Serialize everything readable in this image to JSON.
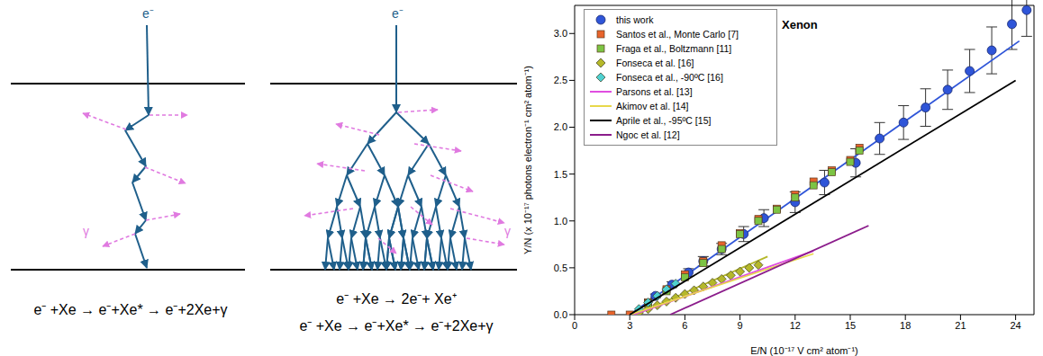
{
  "diagrams": [
    {
      "incident": "e⁻",
      "photon": "γ",
      "equations": [
        "e⁻ +Xe → e⁻+Xe* → e⁻+2Xe+γ"
      ]
    },
    {
      "incident": "e⁻",
      "photon": "γ",
      "equations": [
        "e⁻ +Xe → 2e⁻+ Xe⁺",
        "e⁻ +Xe → e⁻+Xe* → e⁻+2Xe+γ"
      ]
    }
  ],
  "chart_data": {
    "type": "scatter",
    "title": "Xenon",
    "x_label": "E/N  (10⁻¹⁷ V cm² atom⁻¹)",
    "y_label": "Y/N  (x 10⁻¹⁷ photons electron⁻¹ cm² atom⁻¹)",
    "xlim": [
      0,
      25
    ],
    "ylim": [
      0,
      3.3
    ],
    "xticks": [
      0,
      3,
      6,
      9,
      12,
      15,
      18,
      21,
      24
    ],
    "yticks": [
      {
        "value": 0,
        "label": "0.0"
      },
      {
        "value": 0.5,
        "label": "0.5"
      },
      {
        "value": 1,
        "label": "1.0"
      },
      {
        "value": 1.5,
        "label": "1.5"
      },
      {
        "value": 2,
        "label": "2.0"
      },
      {
        "value": 2.5,
        "label": "2.5"
      },
      {
        "value": 3,
        "label": "3.0"
      }
    ],
    "legend": "upper left",
    "series": [
      {
        "name": "this work",
        "type": "scatter",
        "marker": "circle",
        "color": "#2f55d8",
        "x": [
          4.4,
          5.3,
          6.2,
          7.0,
          8.0,
          9.2,
          10.3,
          12.0,
          13.6,
          15.3,
          16.6,
          17.9,
          19.1,
          20.3,
          21.5,
          22.7,
          23.8,
          24.6
        ],
        "values": [
          0.2,
          0.32,
          0.45,
          0.57,
          0.7,
          0.86,
          1.03,
          1.2,
          1.41,
          1.62,
          1.88,
          2.05,
          2.21,
          2.4,
          2.6,
          2.82,
          3.1,
          3.25
        ],
        "errors": [
          0.02,
          0.03,
          0.04,
          0.05,
          0.06,
          0.08,
          0.09,
          0.11,
          0.13,
          0.15,
          0.17,
          0.18,
          0.2,
          0.21,
          0.23,
          0.25,
          0.27,
          0.28
        ],
        "fit": {
          "x": [
            3.0,
            24.2
          ],
          "values": [
            0,
            2.92
          ]
        }
      },
      {
        "name": "Santos et al., Monte Carlo [7]",
        "type": "scatter",
        "marker": "square",
        "color": "#e8642c",
        "x": [
          2,
          3,
          4,
          5,
          6,
          7,
          8,
          9,
          10,
          11,
          12,
          13,
          14,
          15,
          15.5
        ],
        "values": [
          0,
          0,
          0.13,
          0.27,
          0.43,
          0.57,
          0.74,
          0.87,
          1.02,
          1.13,
          1.28,
          1.42,
          1.54,
          1.65,
          1.78
        ]
      },
      {
        "name": "Fraga et al., Boltzmann [11]",
        "type": "scatter",
        "marker": "square",
        "color": "#7cc444",
        "x": [
          4,
          5,
          6,
          7,
          8,
          9,
          10,
          11,
          12,
          13,
          14,
          15,
          15.5
        ],
        "values": [
          0.12,
          0.25,
          0.4,
          0.55,
          0.7,
          0.86,
          1.0,
          1.12,
          1.25,
          1.38,
          1.52,
          1.63,
          1.75
        ]
      },
      {
        "name": "Fonseca et al. [16]",
        "type": "scatter",
        "marker": "diamond",
        "color": "#b5b82a",
        "x": [
          3.5,
          4,
          4.5,
          5,
          5.5,
          6,
          6.5,
          7,
          7.5,
          8,
          8.5,
          9,
          9.5,
          10
        ],
        "values": [
          0.02,
          0.06,
          0.1,
          0.14,
          0.18,
          0.22,
          0.26,
          0.3,
          0.34,
          0.38,
          0.42,
          0.46,
          0.5,
          0.53
        ],
        "fit": {
          "x": [
            3.3,
            10.5
          ],
          "values": [
            0,
            0.62
          ]
        }
      },
      {
        "name": "Fonseca et al., -90ºC [16]",
        "type": "scatter",
        "marker": "diamond",
        "color": "#4fd0d0",
        "x": [
          3.5,
          4,
          4.5,
          5,
          5.5
        ],
        "values": [
          0.06,
          0.13,
          0.2,
          0.27,
          0.33
        ]
      },
      {
        "name": "Parsons et al. [13]",
        "type": "line",
        "line_style": "solid",
        "color": "#e04ee0",
        "x": [
          3.2,
          13
        ],
        "values": [
          0,
          0.68
        ]
      },
      {
        "name": "Akimov et al. [14]",
        "type": "line",
        "line_style": "solid",
        "color": "#e8d84a",
        "x": [
          3,
          13
        ],
        "values": [
          0,
          0.65
        ]
      },
      {
        "name": "Aprile et al., -95ºC [15]",
        "type": "line",
        "line_style": "solid",
        "color": "#000000",
        "x": [
          3,
          24
        ],
        "values": [
          0,
          2.5
        ]
      },
      {
        "name": "Ngoc et al. [12]",
        "type": "line",
        "line_style": "solid",
        "color": "#8b1c8b",
        "x": [
          5.2,
          16
        ],
        "values": [
          0,
          0.95
        ]
      }
    ]
  }
}
